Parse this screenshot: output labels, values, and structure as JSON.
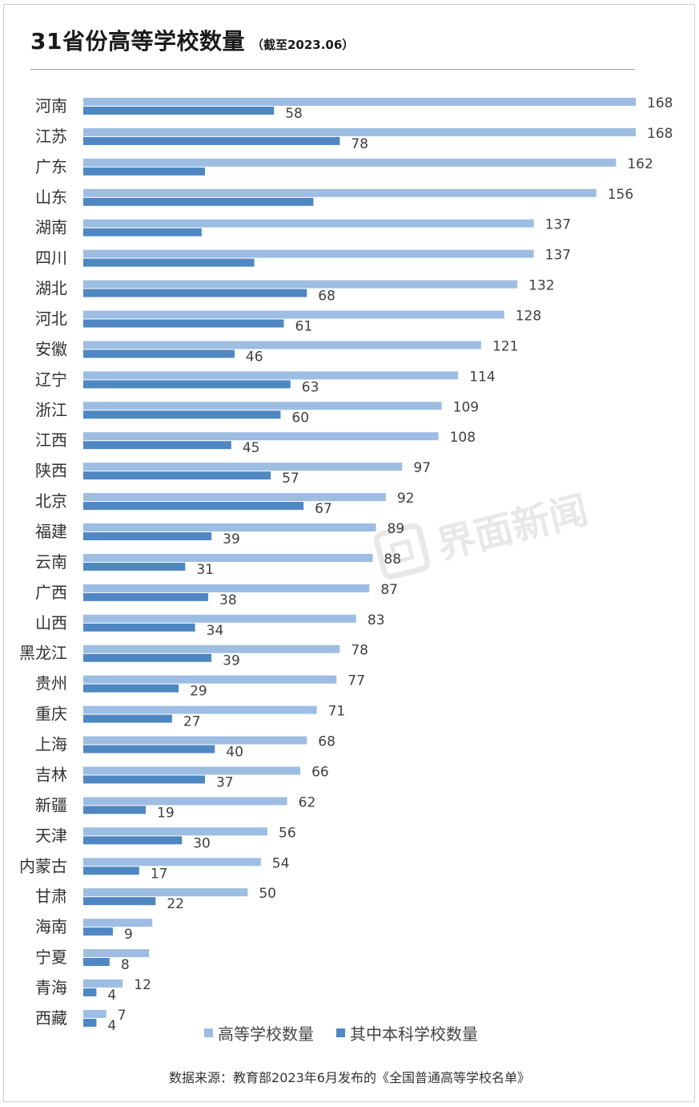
{
  "title": "31省份高等学校数量",
  "subtitle": "（截至2023.06）",
  "watermark": "界面新闻",
  "source": "数据来源：教育部2023年6月发布的《全国普通高等学校名单》",
  "colors": {
    "series1": "#9dbde3",
    "series2": "#4f87c2",
    "text": "#404040"
  },
  "chart_data": {
    "type": "bar",
    "orientation": "horizontal",
    "categories": [
      "河南",
      "江苏",
      "广东",
      "山东",
      "湖南",
      "四川",
      "湖北",
      "河北",
      "安徽",
      "辽宁",
      "浙江",
      "江西",
      "陕西",
      "北京",
      "福建",
      "云南",
      "广西",
      "山西",
      "黑龙江",
      "贵州",
      "重庆",
      "上海",
      "吉林",
      "新疆",
      "天津",
      "内蒙古",
      "甘肃",
      "海南",
      "宁夏",
      "青海",
      "西藏"
    ],
    "series": [
      {
        "name": "高等学校数量",
        "values": [
          168,
          168,
          162,
          156,
          137,
          137,
          132,
          128,
          121,
          114,
          109,
          108,
          97,
          92,
          89,
          88,
          87,
          83,
          78,
          77,
          71,
          68,
          66,
          62,
          56,
          54,
          50,
          21,
          20,
          12,
          7
        ],
        "labels": [
          "168",
          "168",
          "162",
          "156",
          "137",
          "137",
          "132",
          "128",
          "121",
          "114",
          "109",
          "108",
          "97",
          "92",
          "89",
          "88",
          "87",
          "83",
          "78",
          "77",
          "71",
          "68",
          "66",
          "62",
          "56",
          "54",
          "50",
          "",
          "",
          "12",
          "7"
        ]
      },
      {
        "name": "其中本科学校数量",
        "values": [
          58,
          78,
          37,
          70,
          36,
          52,
          68,
          61,
          46,
          63,
          60,
          45,
          57,
          67,
          39,
          31,
          38,
          34,
          39,
          29,
          27,
          40,
          37,
          19,
          30,
          17,
          22,
          9,
          8,
          4,
          4
        ],
        "labels": [
          "58",
          "78",
          "",
          "",
          "",
          "",
          "68",
          "61",
          "46",
          "63",
          "60",
          "45",
          "57",
          "67",
          "39",
          "31",
          "38",
          "34",
          "39",
          "29",
          "27",
          "40",
          "37",
          "19",
          "30",
          "17",
          "22",
          "9",
          "8",
          "4",
          "4"
        ]
      }
    ],
    "xlim": [
      0,
      168
    ],
    "grid": false,
    "legend": "bottom"
  }
}
